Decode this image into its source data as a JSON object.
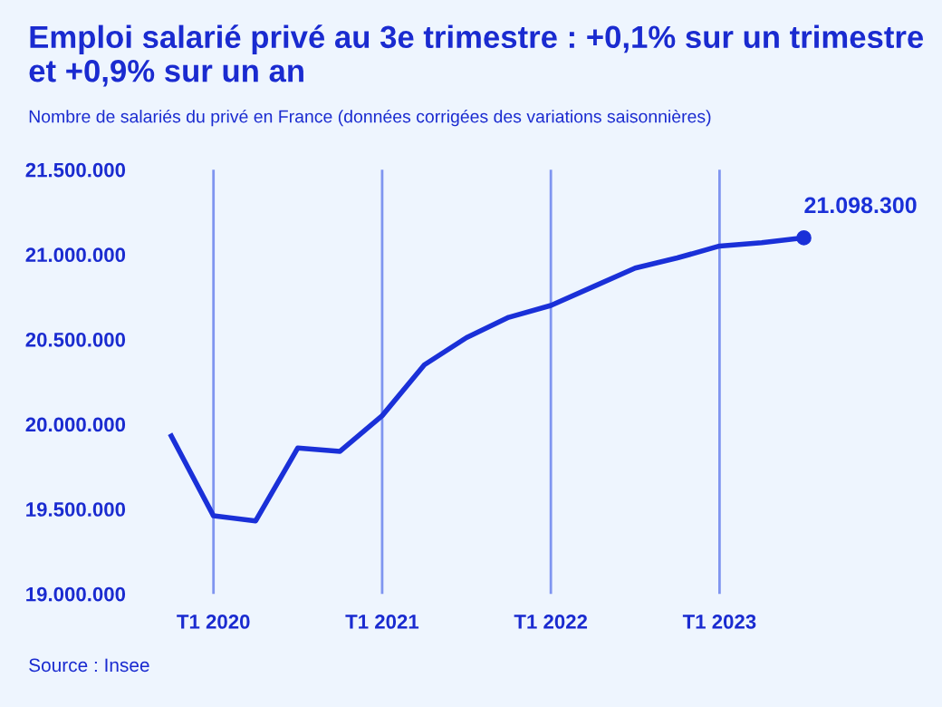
{
  "chart_data": {
    "type": "line",
    "title": "Emploi salarié privé au 3e trimestre : +0,1% sur un trimestre et +0,9% sur un an",
    "subtitle": "Nombre de salariés du privé en France (données corrigées des variations saisonnières)",
    "categories": [
      null,
      "T1 2020",
      null,
      null,
      null,
      "T1 2021",
      null,
      null,
      null,
      "T1 2022",
      null,
      null,
      null,
      "T1 2023",
      null,
      null
    ],
    "series": [
      {
        "color": "#1a30d8",
        "values": [
          19930000,
          19460000,
          19430000,
          19860000,
          19840000,
          20050000,
          20350000,
          20510000,
          20630000,
          20700000,
          20810000,
          20920000,
          20980000,
          21050000,
          21070000,
          21098300
        ],
        "value_labels": [
          null,
          null,
          null,
          null,
          null,
          null,
          null,
          null,
          null,
          null,
          null,
          null,
          null,
          null,
          null,
          "21.098.300"
        ]
      }
    ],
    "ylim": [
      19000000,
      21500000
    ],
    "yticks": [
      {
        "value": 19000000,
        "label": "19.000.000"
      },
      {
        "value": 19500000,
        "label": "19.500.000"
      },
      {
        "value": 20000000,
        "label": "20.000.000"
      },
      {
        "value": 20500000,
        "label": "20.500.000"
      },
      {
        "value": 21000000,
        "label": "21.000.000"
      },
      {
        "value": 21500000,
        "label": "21.500.000"
      }
    ],
    "grid": "x",
    "legend": false,
    "line_style": "solid",
    "annotations": [
      "Source : Insee"
    ]
  }
}
